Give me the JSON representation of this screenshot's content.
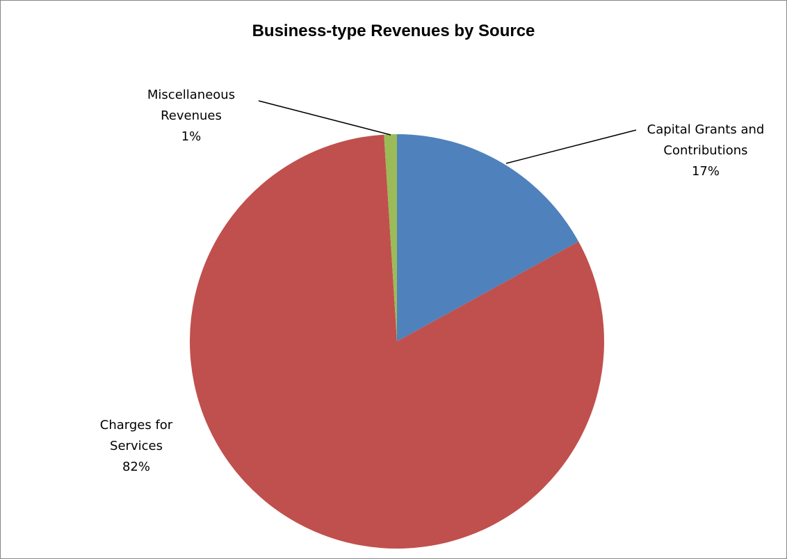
{
  "chart_data": {
    "type": "pie",
    "title": "Business-type Revenues by Source",
    "slices": [
      {
        "label_lines": [
          "Capital Grants and",
          "Contributions"
        ],
        "percent_label": "17%",
        "value": 17,
        "color": "#4F81BD"
      },
      {
        "label_lines": [
          "Charges for",
          "Services"
        ],
        "percent_label": "82%",
        "value": 82,
        "color": "#C0504D"
      },
      {
        "label_lines": [
          "Miscellaneous",
          "Revenues"
        ],
        "percent_label": "1%",
        "value": 1,
        "color": "#9BBB59"
      }
    ],
    "start_angle_deg": 0,
    "direction": "clockwise",
    "legend": "none"
  }
}
